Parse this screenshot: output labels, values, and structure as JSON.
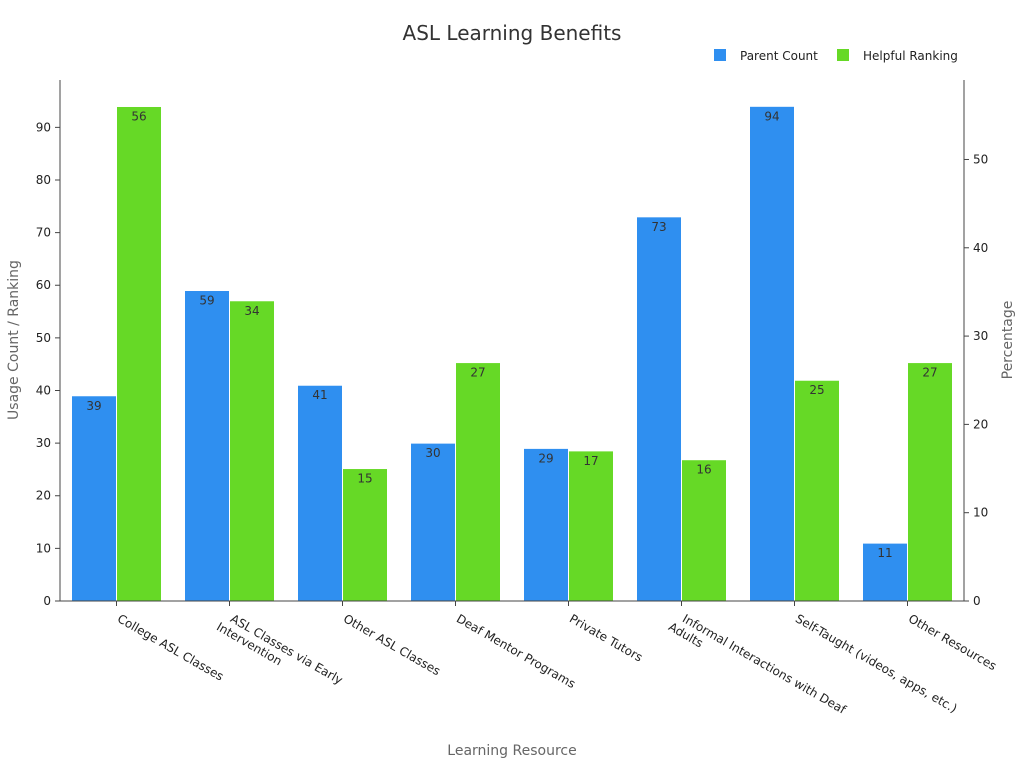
{
  "chart_data": {
    "type": "bar",
    "title": "ASL Learning Benefits",
    "xlabel": "Learning Resource",
    "ylabel": "Usage Count / Ranking",
    "y2label": "Percentage",
    "categories": [
      "College ASL Classes",
      "ASL Classes via Early Intervention",
      "Other ASL Classes",
      "Deaf Mentor Programs",
      "Private Tutors",
      "Informal Interactions with Deaf Adults",
      "Self-Taught (videos, apps, etc.)",
      "Other Resources"
    ],
    "category_lines": [
      [
        "College ASL Classes"
      ],
      [
        "ASL Classes via Early",
        "Intervention"
      ],
      [
        "Other ASL Classes"
      ],
      [
        "Deaf Mentor Programs"
      ],
      [
        "Private Tutors"
      ],
      [
        "Informal Interactions with Deaf",
        "Adults"
      ],
      [
        "Self-Taught (videos, apps, etc.)"
      ],
      [
        "Other Resources"
      ]
    ],
    "series": [
      {
        "name": "Parent Count",
        "axis": "left",
        "color": "#2f8ff0",
        "values": [
          39,
          59,
          41,
          30,
          29,
          73,
          94,
          11
        ]
      },
      {
        "name": "Helpful Ranking",
        "axis": "right",
        "color": "#66d926",
        "values": [
          56,
          34,
          15,
          27,
          17,
          16,
          25,
          27
        ]
      }
    ],
    "ylim": [
      0,
      99
    ],
    "y2lim": [
      0,
      59
    ],
    "yticks": [
      0,
      10,
      20,
      30,
      40,
      50,
      60,
      70,
      80,
      90
    ],
    "y2ticks": [
      0,
      10,
      20,
      30,
      40,
      50
    ],
    "legend_position": "top-right",
    "grid": false
  }
}
